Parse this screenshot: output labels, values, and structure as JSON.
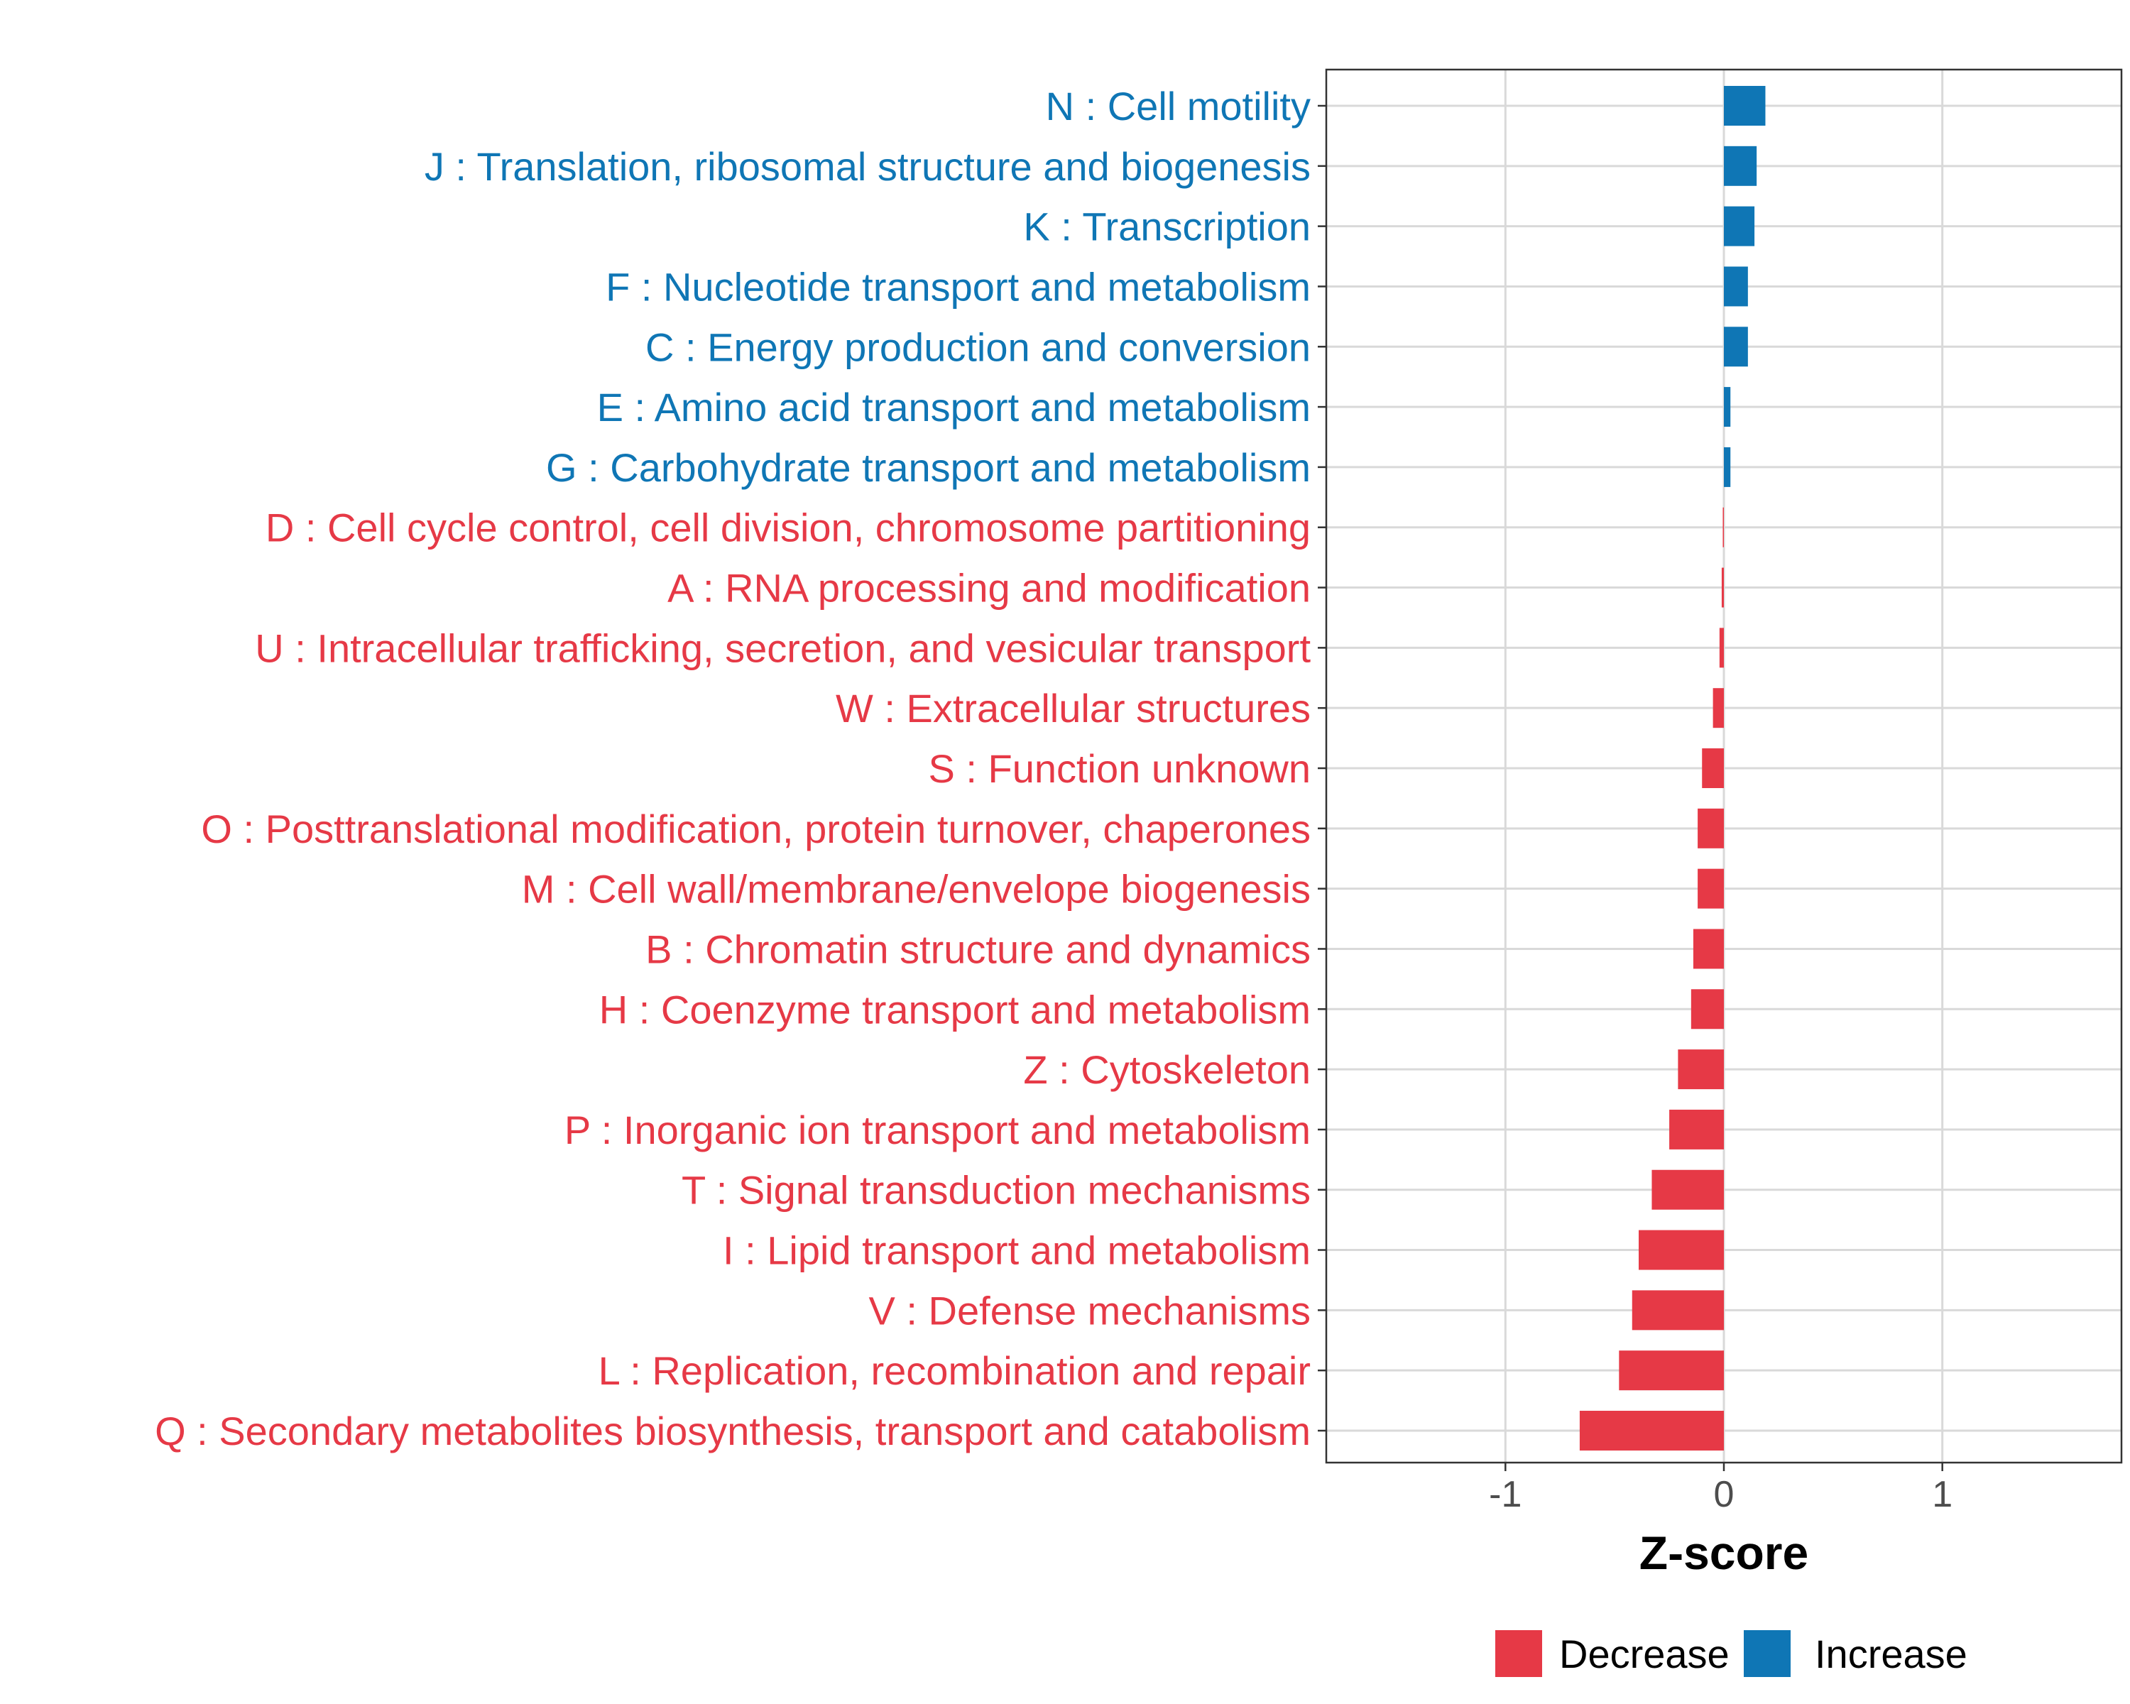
{
  "chart_data": {
    "type": "bar",
    "orientation": "horizontal",
    "title": "",
    "xlabel": "Z-score",
    "ylabel": "",
    "xlim": [
      -1.82,
      1.82
    ],
    "xticks": [
      -1,
      0,
      1
    ],
    "xtick_labels": [
      "-1",
      "0",
      "1"
    ],
    "grid": true,
    "legend_position": "bottom",
    "colors": {
      "Decrease": "#e63946",
      "Increase": "#0f76b5"
    },
    "legend": [
      {
        "name": "Decrease",
        "label": "Decrease"
      },
      {
        "name": "Increase",
        "label": "Increase"
      }
    ],
    "categories": [
      "N : Cell motility",
      "J : Translation, ribosomal structure and biogenesis",
      "K : Transcription",
      "F : Nucleotide transport and metabolism",
      "C : Energy production and conversion",
      "E : Amino acid transport and metabolism",
      "G : Carbohydrate transport and metabolism",
      "D : Cell cycle control, cell division, chromosome partitioning",
      "A : RNA processing and modification",
      "U : Intracellular trafficking, secretion, and vesicular transport",
      "W : Extracellular structures",
      "S : Function unknown",
      "O : Posttranslational modification, protein turnover, chaperones",
      "M : Cell wall/membrane/envelope biogenesis",
      "B : Chromatin structure and dynamics",
      "H : Coenzyme transport and metabolism",
      "Z : Cytoskeleton",
      "P : Inorganic ion transport and metabolism",
      "T : Signal transduction mechanisms",
      "I : Lipid transport and metabolism",
      "V : Defense mechanisms",
      "L : Replication, recombination and repair",
      "Q : Secondary metabolites biosynthesis, transport and catabolism"
    ],
    "values": [
      0.19,
      0.15,
      0.14,
      0.11,
      0.11,
      0.03,
      0.03,
      -0.005,
      -0.01,
      -0.02,
      -0.05,
      -0.1,
      -0.12,
      -0.12,
      -0.14,
      -0.15,
      -0.21,
      -0.25,
      -0.33,
      -0.39,
      -0.42,
      -0.48,
      -0.66
    ],
    "groups": [
      "Increase",
      "Increase",
      "Increase",
      "Increase",
      "Increase",
      "Increase",
      "Increase",
      "Decrease",
      "Decrease",
      "Decrease",
      "Decrease",
      "Decrease",
      "Decrease",
      "Decrease",
      "Decrease",
      "Decrease",
      "Decrease",
      "Decrease",
      "Decrease",
      "Decrease",
      "Decrease",
      "Decrease",
      "Decrease"
    ]
  }
}
